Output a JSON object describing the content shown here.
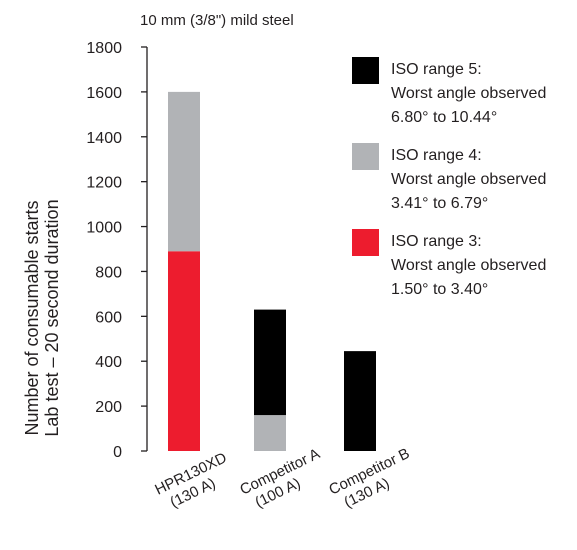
{
  "chart_data": {
    "type": "bar",
    "stacked": true,
    "title": "10 mm (3/8\") mild steel",
    "ylabel_lines": [
      "Number of consumable starts",
      "Lab test – 20 second duration"
    ],
    "ylim": [
      0,
      1800
    ],
    "yticks": [
      0,
      200,
      400,
      600,
      800,
      1000,
      1200,
      1400,
      1600,
      1800
    ],
    "grid": false,
    "legend_position": "right",
    "categories": [
      {
        "lines": [
          "HPR130XD",
          "(130 A)"
        ]
      },
      {
        "lines": [
          "Competitor A",
          "(100 A)"
        ]
      },
      {
        "lines": [
          "Competitor B",
          "(130 A)"
        ]
      }
    ],
    "series": [
      {
        "key": "iso3",
        "color": "#ed1c2e",
        "values": [
          890,
          0,
          0
        ],
        "legend_lines": [
          "ISO range 3:",
          "Worst angle observed",
          "1.50° to 3.40°"
        ]
      },
      {
        "key": "iso4",
        "color": "#b1b3b6",
        "values": [
          710,
          160,
          0
        ],
        "legend_lines": [
          "ISO range 4:",
          "Worst angle observed",
          "3.41° to 6.79°"
        ]
      },
      {
        "key": "iso5",
        "color": "#000000",
        "values": [
          0,
          470,
          445
        ],
        "legend_lines": [
          "ISO range 5:",
          "Worst angle observed",
          "6.80° to 10.44°"
        ]
      }
    ],
    "legend_order": [
      "iso5",
      "iso4",
      "iso3"
    ]
  }
}
